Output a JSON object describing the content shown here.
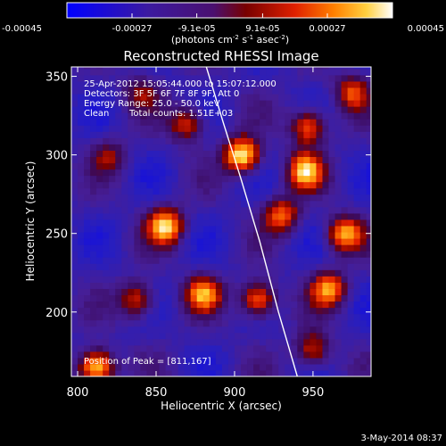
{
  "chart_data": {
    "type": "heatmap",
    "title": "Reconstructed RHESSI Image",
    "xlabel": "Heliocentric X (arcsec)",
    "ylabel": "Heliocentric Y (arcsec)",
    "xlim": [
      796,
      987
    ],
    "ylim": [
      159,
      356
    ],
    "x_ticks": [
      "800",
      "850",
      "900",
      "950"
    ],
    "y_ticks": [
      "200",
      "250",
      "300",
      "350"
    ],
    "x_tick_values": [
      800,
      850,
      900,
      950
    ],
    "y_tick_values": [
      200,
      250,
      300,
      350
    ],
    "colorbar": {
      "ticks": [
        "-0.00045",
        "-0.00027",
        "-9.1e-05",
        "9.1e-05",
        "0.00027",
        "0.00045"
      ],
      "tick_values": [
        -0.00045,
        -0.00027,
        -9.1e-05,
        9.1e-05,
        0.00027,
        0.00045
      ],
      "units_prefix": "(photons cm",
      "units_exp1": "-2",
      "units_mid": " s",
      "units_exp2": "-1",
      "units_mid2": " asec",
      "units_exp3": "-2",
      "units_suffix": ")",
      "range": [
        -0.00045,
        0.00045
      ]
    },
    "annotations": [
      "25-Apr-2012 15:05:44.000 to 15:07:12.000",
      "Detectors: 3F 5F 6F 7F 8F 9F, Att 0",
      "Energy Range: 25.0 - 50.0 keV",
      "Clean",
      "Total counts: 1.51E+03"
    ],
    "peak_label": "Position of Peak = [811,167]",
    "peak": [
      811,
      167
    ],
    "limb_curve": {
      "x": [
        882,
        893,
        904,
        916,
        928,
        940
      ],
      "y": [
        356,
        320,
        285,
        245,
        200,
        159
      ]
    },
    "bright_sources": [
      {
        "x": 812,
        "y": 165,
        "level": 0.98
      },
      {
        "x": 905,
        "y": 300,
        "level": 0.95
      },
      {
        "x": 856,
        "y": 255,
        "level": 0.85
      },
      {
        "x": 945,
        "y": 290,
        "level": 0.8
      },
      {
        "x": 970,
        "y": 250,
        "level": 0.75
      },
      {
        "x": 947,
        "y": 318,
        "level": 0.7
      },
      {
        "x": 880,
        "y": 212,
        "level": 0.7
      },
      {
        "x": 915,
        "y": 208,
        "level": 0.75
      },
      {
        "x": 838,
        "y": 208,
        "level": 0.6
      },
      {
        "x": 960,
        "y": 215,
        "level": 0.7
      },
      {
        "x": 930,
        "y": 262,
        "level": 0.65
      },
      {
        "x": 950,
        "y": 176,
        "level": 0.55
      },
      {
        "x": 870,
        "y": 320,
        "level": 0.55
      },
      {
        "x": 975,
        "y": 340,
        "level": 0.55
      },
      {
        "x": 820,
        "y": 300,
        "level": 0.35
      },
      {
        "x": 840,
        "y": 340,
        "level": 0.35
      }
    ]
  },
  "footer": {
    "date": "3-May-2014 08:37"
  }
}
